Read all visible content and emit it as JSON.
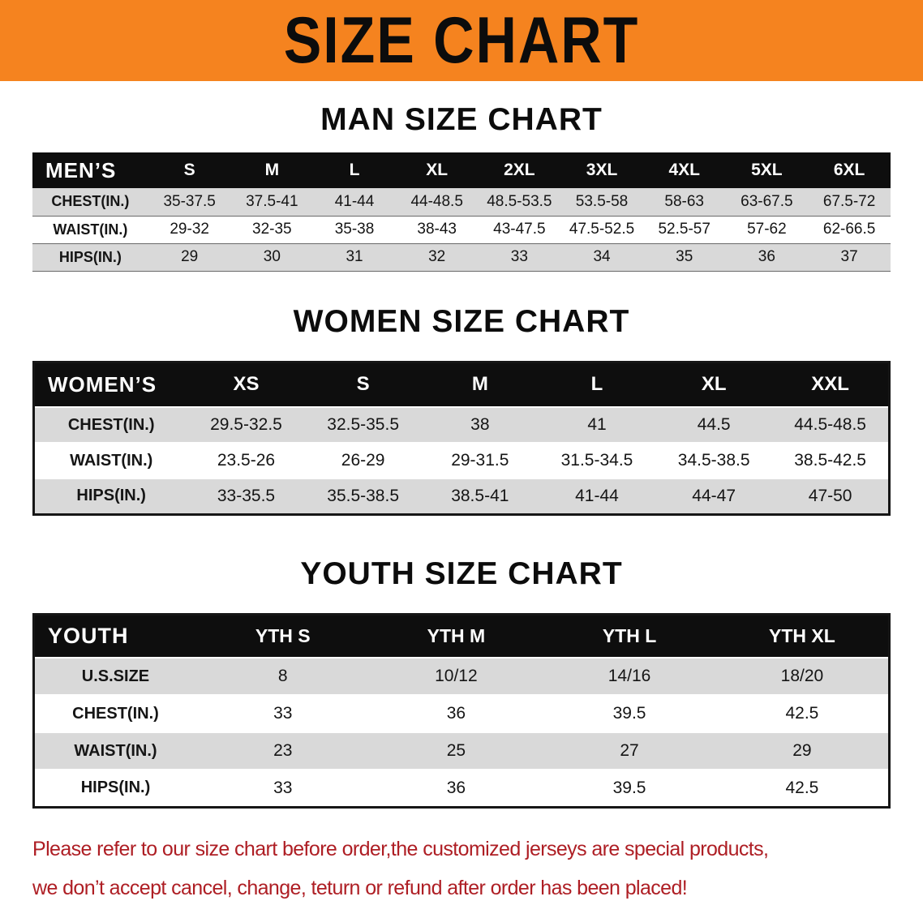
{
  "banner": {
    "title": "SIZE CHART"
  },
  "colors": {
    "banner_orange": "#f5831f",
    "header_black": "#0e0e0e",
    "row_gray": "#d9d9d9",
    "note_red": "#ae1e24",
    "text_black": "#101010"
  },
  "sections": [
    {
      "id": "men",
      "heading": "MAN SIZE CHART"
    },
    {
      "id": "women",
      "heading": "WOMEN SIZE CHART"
    },
    {
      "id": "youth",
      "heading": "YOUTH SIZE CHART"
    }
  ],
  "chart_data": [
    {
      "type": "table",
      "id": "men",
      "title": "MAN SIZE CHART",
      "corner_label": "MEN’S",
      "columns": [
        "S",
        "M",
        "L",
        "XL",
        "2XL",
        "3XL",
        "4XL",
        "5XL",
        "6XL"
      ],
      "rows": [
        {
          "label": "CHEST(IN.)",
          "values": [
            "35-37.5",
            "37.5-41",
            "41-44",
            "44-48.5",
            "48.5-53.5",
            "53.5-58",
            "58-63",
            "63-67.5",
            "67.5-72"
          ]
        },
        {
          "label": "WAIST(IN.)",
          "values": [
            "29-32",
            "32-35",
            "35-38",
            "38-43",
            "43-47.5",
            "47.5-52.5",
            "52.5-57",
            "57-62",
            "62-66.5"
          ]
        },
        {
          "label": "HIPS(IN.)",
          "values": [
            "29",
            "30",
            "31",
            "32",
            "33",
            "34",
            "35",
            "36",
            "37"
          ]
        }
      ]
    },
    {
      "type": "table",
      "id": "women",
      "title": "WOMEN SIZE CHART",
      "corner_label": "WOMEN’S",
      "columns": [
        "XS",
        "S",
        "M",
        "L",
        "XL",
        "XXL"
      ],
      "rows": [
        {
          "label": "CHEST(IN.)",
          "values": [
            "29.5-32.5",
            "32.5-35.5",
            "38",
            "41",
            "44.5",
            "44.5-48.5"
          ]
        },
        {
          "label": "WAIST(IN.)",
          "values": [
            "23.5-26",
            "26-29",
            "29-31.5",
            "31.5-34.5",
            "34.5-38.5",
            "38.5-42.5"
          ]
        },
        {
          "label": "HIPS(IN.)",
          "values": [
            "33-35.5",
            "35.5-38.5",
            "38.5-41",
            "41-44",
            "44-47",
            "47-50"
          ]
        }
      ]
    },
    {
      "type": "table",
      "id": "youth",
      "title": "YOUTH SIZE CHART",
      "corner_label": "YOUTH",
      "columns": [
        "YTH S",
        "YTH M",
        "YTH L",
        "YTH XL"
      ],
      "rows": [
        {
          "label": "U.S.SIZE",
          "values": [
            "8",
            "10/12",
            "14/16",
            "18/20"
          ]
        },
        {
          "label": "CHEST(IN.)",
          "values": [
            "33",
            "36",
            "39.5",
            "42.5"
          ]
        },
        {
          "label": "WAIST(IN.)",
          "values": [
            "23",
            "25",
            "27",
            "29"
          ]
        },
        {
          "label": "HIPS(IN.)",
          "values": [
            "33",
            "36",
            "39.5",
            "42.5"
          ]
        }
      ]
    }
  ],
  "note": {
    "lines": [
      "Please refer to our size chart before order,the customized jerseys are special products,",
      "we don’t accept cancel, change, teturn or refund after order has been placed!"
    ]
  }
}
